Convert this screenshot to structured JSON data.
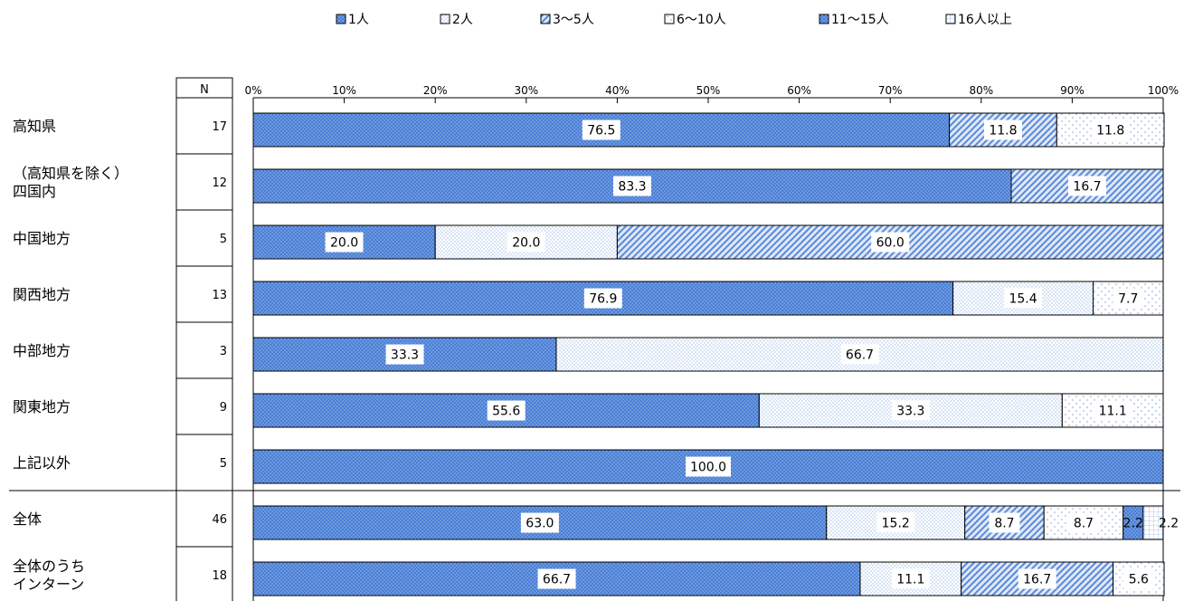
{
  "chart_data": {
    "type": "bar",
    "stacked": true,
    "orientation": "horizontal",
    "n_header": "N",
    "legend_position": "top",
    "xlim": [
      0,
      100
    ],
    "x_ticks": [
      "0%",
      "10%",
      "20%",
      "30%",
      "40%",
      "50%",
      "60%",
      "70%",
      "80%",
      "90%",
      "100%"
    ],
    "categories": [
      {
        "label": "高知県",
        "n": "17"
      },
      {
        "label": "（高知県を除く）\n四国内",
        "n": "12"
      },
      {
        "label": "中国地方",
        "n": "5"
      },
      {
        "label": "関西地方",
        "n": "13"
      },
      {
        "label": "中部地方",
        "n": "3"
      },
      {
        "label": "関東地方",
        "n": "9"
      },
      {
        "label": "上記以外",
        "n": "5"
      },
      {
        "label": "全体",
        "n": "46"
      },
      {
        "label": "全体のうち\nインターン",
        "n": "18"
      }
    ],
    "series": [
      {
        "name": "1人",
        "pattern": "dots-dense",
        "color": "#4a7fd6",
        "values": [
          76.5,
          83.3,
          20.0,
          76.9,
          33.3,
          55.6,
          100.0,
          63.0,
          66.7
        ]
      },
      {
        "name": "2人",
        "pattern": "dots-light",
        "color": "#bfd3ef",
        "values": [
          0,
          0,
          20.0,
          15.4,
          66.7,
          33.3,
          0,
          15.2,
          11.1
        ]
      },
      {
        "name": "3～5人",
        "pattern": "diagonal",
        "color": "#5a8ad8",
        "values": [
          11.8,
          16.7,
          60.0,
          0,
          0,
          0,
          0,
          8.7,
          16.7
        ]
      },
      {
        "name": "6～10人",
        "pattern": "dots-sparse",
        "color": "#9dbbe6",
        "values": [
          11.8,
          0,
          0,
          7.7,
          0,
          11.1,
          0,
          8.7,
          5.6
        ]
      },
      {
        "name": "11～15人",
        "pattern": "dots-dense",
        "color": "#4a7fd6",
        "values": [
          0,
          0,
          0,
          0,
          0,
          0,
          0,
          2.2,
          0
        ]
      },
      {
        "name": "16人以上",
        "pattern": "grid",
        "color": "#bfd3ef",
        "values": [
          0,
          0,
          0,
          0,
          0,
          0,
          0,
          2.2,
          0
        ]
      }
    ],
    "data_labels": [
      [
        "76.5",
        "",
        "11.8",
        "11.8",
        "",
        ""
      ],
      [
        "83.3",
        "",
        "16.7",
        "",
        "",
        ""
      ],
      [
        "20.0",
        "20.0",
        "60.0",
        "",
        "",
        ""
      ],
      [
        "76.9",
        "15.4",
        "",
        "7.7",
        "",
        ""
      ],
      [
        "33.3",
        "66.7",
        "",
        "",
        "",
        ""
      ],
      [
        "55.6",
        "33.3",
        "",
        "11.1",
        "",
        ""
      ],
      [
        "100.0",
        "",
        "",
        "",
        "",
        ""
      ],
      [
        "63.0",
        "15.2",
        "8.7",
        "8.7",
        "2.2",
        "2.2"
      ],
      [
        "66.7",
        "11.1",
        "16.7",
        "5.6",
        "",
        ""
      ]
    ]
  }
}
